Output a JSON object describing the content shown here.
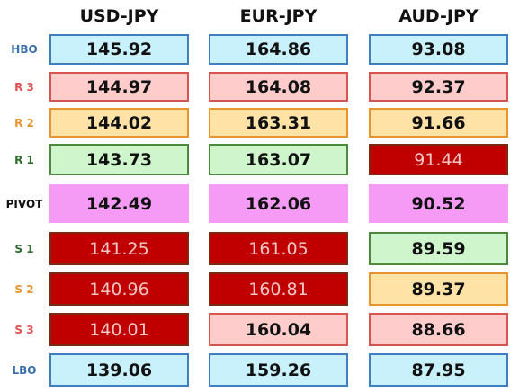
{
  "table": {
    "columns": [
      "USD-JPY",
      "EUR-JPY",
      "AUD-JPY"
    ],
    "rows": [
      {
        "label": "HBO",
        "values": [
          145.92,
          164.86,
          93.08
        ]
      },
      {
        "label": "R 3",
        "values": [
          144.97,
          164.08,
          92.37
        ]
      },
      {
        "label": "R 2",
        "values": [
          144.02,
          163.31,
          91.66
        ]
      },
      {
        "label": "R 1",
        "values": [
          143.73,
          163.07,
          91.44
        ]
      },
      {
        "label": "PIVOT",
        "values": [
          142.49,
          162.06,
          90.52
        ]
      },
      {
        "label": "S 1",
        "values": [
          141.25,
          161.05,
          89.59
        ]
      },
      {
        "label": "S 2",
        "values": [
          140.96,
          160.81,
          89.37
        ]
      },
      {
        "label": "S 3",
        "values": [
          140.01,
          160.04,
          88.66
        ]
      },
      {
        "label": "LBO",
        "values": [
          139.06,
          159.26,
          87.95
        ]
      }
    ]
  }
}
